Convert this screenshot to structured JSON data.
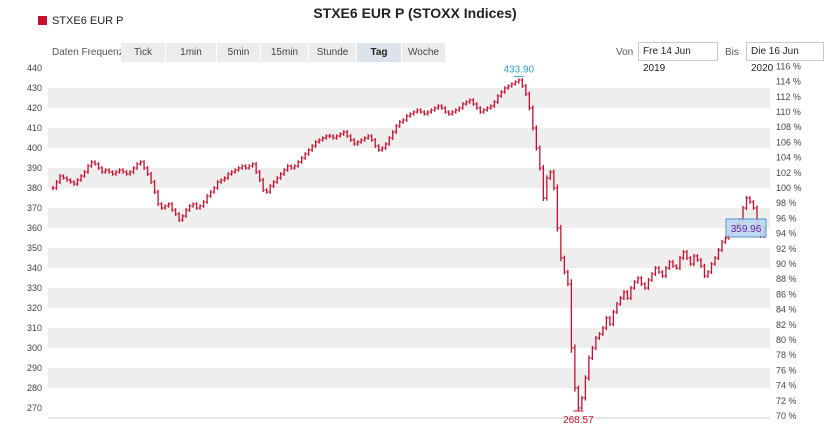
{
  "header": {
    "title": "STXE6 EUR P (STOXX Indices)",
    "legend": "STXE6 EUR P"
  },
  "toolbar": {
    "freq_label": "Daten Frequenz",
    "tabs": [
      "Tick",
      "1min",
      "5min",
      "15min",
      "Stunde",
      "Tag",
      "Woche"
    ],
    "active_tab": "Tag",
    "from_label": "Von",
    "from_value": "Fre 14 Jun 2019",
    "to_label": "Bis",
    "to_value": "Die 16 Jun 2020"
  },
  "colors": {
    "series": "#c8102e",
    "max_marker": "#2a9fd6",
    "min_marker": "#c8102e",
    "band": "#eeeeee"
  },
  "chart_data": {
    "type": "ohlc-bar",
    "series_name": "STXE6 EUR P",
    "yaxis_left": {
      "min": 265,
      "max": 442,
      "ticks": [
        "270",
        "280",
        "290",
        "300",
        "310",
        "320",
        "330",
        "340",
        "350",
        "360",
        "370",
        "380",
        "390",
        "400",
        "410",
        "420",
        "430",
        "440"
      ]
    },
    "yaxis_right": {
      "ticks": [
        "70 %",
        "72 %",
        "74 %",
        "76 %",
        "78 %",
        "80 %",
        "82 %",
        "84 %",
        "86 %",
        "88 %",
        "90 %",
        "92 %",
        "94 %",
        "96 %",
        "98 %",
        "100 %",
        "102 %",
        "104 %",
        "106 %",
        "108 %",
        "110 %",
        "112 %",
        "114 %",
        "116 %"
      ]
    },
    "annotations": {
      "max_label": "433.90",
      "min_label": "268.57",
      "last_label": "359.96"
    },
    "closes": [
      380,
      383,
      386,
      385,
      384,
      383,
      382,
      384,
      386,
      388,
      391,
      393,
      392,
      390,
      388,
      389,
      388,
      387,
      388,
      389,
      388,
      387,
      388,
      390,
      392,
      393,
      390,
      387,
      383,
      378,
      372,
      370,
      371,
      372,
      369,
      367,
      364,
      366,
      369,
      371,
      372,
      370,
      371,
      373,
      376,
      378,
      380,
      383,
      384,
      385,
      387,
      388,
      389,
      390,
      391,
      390,
      391,
      392,
      388,
      384,
      379,
      378,
      381,
      383,
      385,
      387,
      389,
      391,
      390,
      391,
      393,
      395,
      397,
      399,
      401,
      403,
      404,
      405,
      406,
      406,
      405,
      406,
      407,
      408,
      406,
      404,
      402,
      403,
      404,
      405,
      406,
      404,
      401,
      399,
      400,
      402,
      405,
      408,
      411,
      413,
      414,
      416,
      417,
      418,
      419,
      418,
      417,
      418,
      419,
      420,
      421,
      420,
      418,
      417,
      418,
      419,
      420,
      422,
      423,
      424,
      422,
      420,
      418,
      419,
      420,
      421,
      423,
      426,
      428,
      430,
      431,
      432,
      433,
      434,
      431,
      427,
      420,
      410,
      400,
      390,
      375,
      385,
      388,
      380,
      360,
      345,
      338,
      332,
      300,
      280,
      270,
      275,
      285,
      295,
      300,
      305,
      307,
      310,
      315,
      312,
      318,
      322,
      325,
      328,
      325,
      330,
      333,
      335,
      332,
      330,
      334,
      337,
      340,
      338,
      336,
      340,
      343,
      341,
      340,
      345,
      348,
      345,
      342,
      346,
      344,
      341,
      336,
      338,
      342,
      345,
      349,
      353,
      355,
      357,
      359,
      362,
      364,
      370,
      375,
      373,
      370,
      360,
      356,
      360
    ]
  }
}
